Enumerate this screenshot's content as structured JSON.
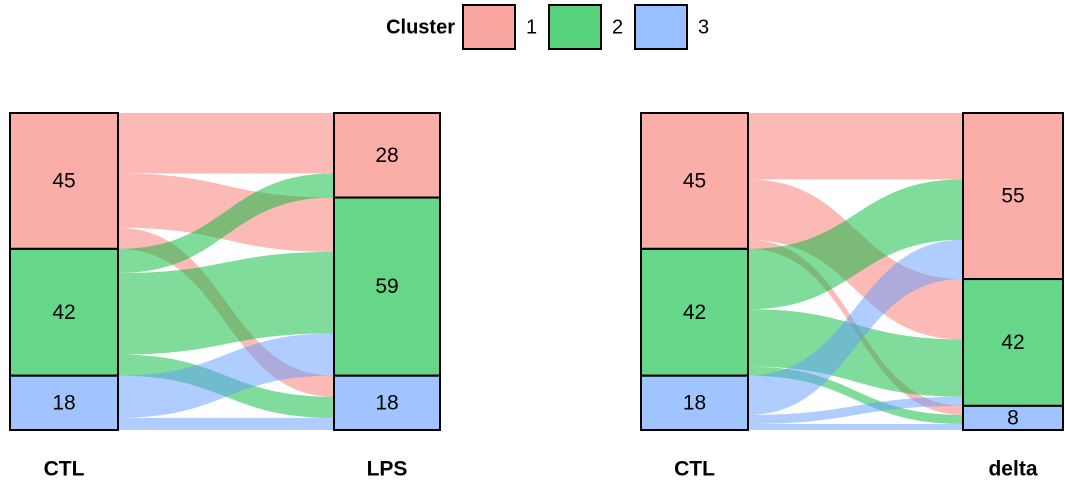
{
  "chart_data": {
    "type": "alluvial",
    "legend_title": "Cluster",
    "clusters": [
      "1",
      "2",
      "3"
    ],
    "colors": [
      "#F8766D",
      "#00BA38",
      "#619CFF"
    ],
    "panels": [
      {
        "axes": [
          "CTL",
          "LPS"
        ],
        "left": [
          45,
          42,
          18
        ],
        "right": [
          28,
          59,
          18
        ],
        "flows": [
          [
            20,
            18,
            7
          ],
          [
            8,
            27,
            7
          ],
          [
            0,
            14,
            4
          ]
        ]
      },
      {
        "axes": [
          "CTL",
          "delta"
        ],
        "left": [
          45,
          42,
          18
        ],
        "right": [
          55,
          42,
          8
        ],
        "flows": [
          [
            22,
            20,
            3
          ],
          [
            20,
            19,
            3
          ],
          [
            13,
            3,
            2
          ]
        ]
      }
    ]
  }
}
